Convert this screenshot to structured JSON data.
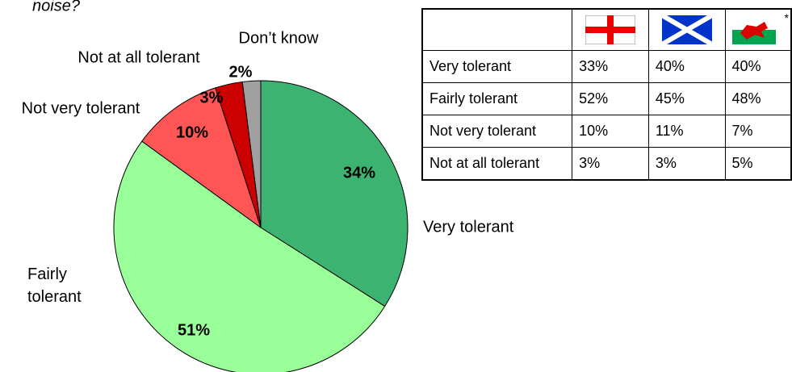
{
  "chart_data": {
    "type": "pie",
    "subtitle": "noise?",
    "categories": [
      "Very tolerant",
      "Fairly tolerant",
      "Not very tolerant",
      "Not at all tolerant",
      "Don’t know"
    ],
    "values": [
      34,
      51,
      10,
      3,
      2
    ],
    "value_labels": [
      "34%",
      "51%",
      "10%",
      "3%",
      "2%"
    ],
    "colors": [
      "#3cb371",
      "#99ff99",
      "#ff5555",
      "#cc0000",
      "#a0a0a0"
    ]
  },
  "table": {
    "footnote_mark": "*",
    "rows": [
      [
        "Very tolerant",
        "33%",
        "40%",
        "40%"
      ],
      [
        "Fairly tolerant",
        "52%",
        "45%",
        "48%"
      ],
      [
        "Not very tolerant",
        "10%",
        "11%",
        "7%"
      ],
      [
        "Not at all tolerant",
        "3%",
        "3%",
        "5%"
      ]
    ]
  }
}
